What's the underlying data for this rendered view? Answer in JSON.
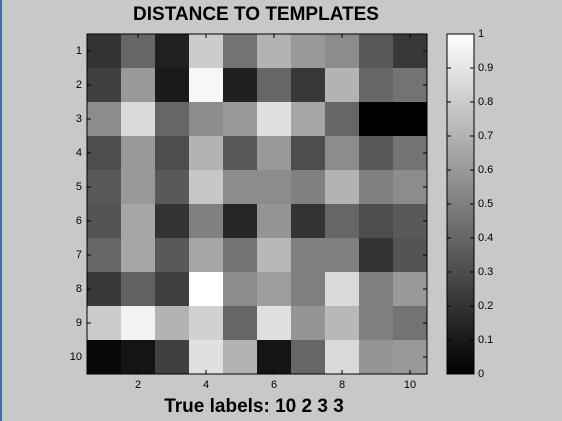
{
  "chart_data": {
    "type": "heatmap",
    "title": "DISTANCE TO TEMPLATES",
    "xlabel": "True labels: 10 2 3 3",
    "colormap": "gray",
    "y_reversed": true,
    "xlim": [
      0.5,
      10.5
    ],
    "xticks": [
      2,
      4,
      6,
      8,
      10
    ],
    "ylim": [
      0.5,
      10.5
    ],
    "yticks": [
      1,
      2,
      3,
      4,
      5,
      6,
      7,
      8,
      9,
      10
    ],
    "values": [
      [
        0.2,
        0.4,
        0.13,
        0.8,
        0.45,
        0.7,
        0.6,
        0.55,
        0.35,
        0.22
      ],
      [
        0.25,
        0.6,
        0.1,
        0.97,
        0.12,
        0.4,
        0.22,
        0.7,
        0.4,
        0.45
      ],
      [
        0.55,
        0.85,
        0.4,
        0.55,
        0.6,
        0.88,
        0.65,
        0.4,
        0.0,
        0.0
      ],
      [
        0.3,
        0.6,
        0.3,
        0.7,
        0.35,
        0.6,
        0.3,
        0.55,
        0.35,
        0.45
      ],
      [
        0.35,
        0.6,
        0.35,
        0.78,
        0.55,
        0.55,
        0.5,
        0.7,
        0.5,
        0.55
      ],
      [
        0.33,
        0.65,
        0.2,
        0.5,
        0.15,
        0.58,
        0.2,
        0.4,
        0.3,
        0.35
      ],
      [
        0.4,
        0.65,
        0.35,
        0.65,
        0.45,
        0.72,
        0.5,
        0.5,
        0.2,
        0.33
      ],
      [
        0.22,
        0.38,
        0.25,
        1.0,
        0.55,
        0.62,
        0.5,
        0.85,
        0.5,
        0.6
      ],
      [
        0.8,
        0.95,
        0.7,
        0.82,
        0.4,
        0.88,
        0.58,
        0.72,
        0.5,
        0.45
      ],
      [
        0.03,
        0.08,
        0.25,
        0.88,
        0.7,
        0.08,
        0.4,
        0.85,
        0.58,
        0.6
      ]
    ],
    "colorbar": {
      "lim": [
        0,
        1
      ],
      "ticks": [
        0,
        0.1,
        0.2,
        0.3,
        0.4,
        0.5,
        0.6,
        0.7,
        0.8,
        0.9,
        1
      ]
    }
  }
}
